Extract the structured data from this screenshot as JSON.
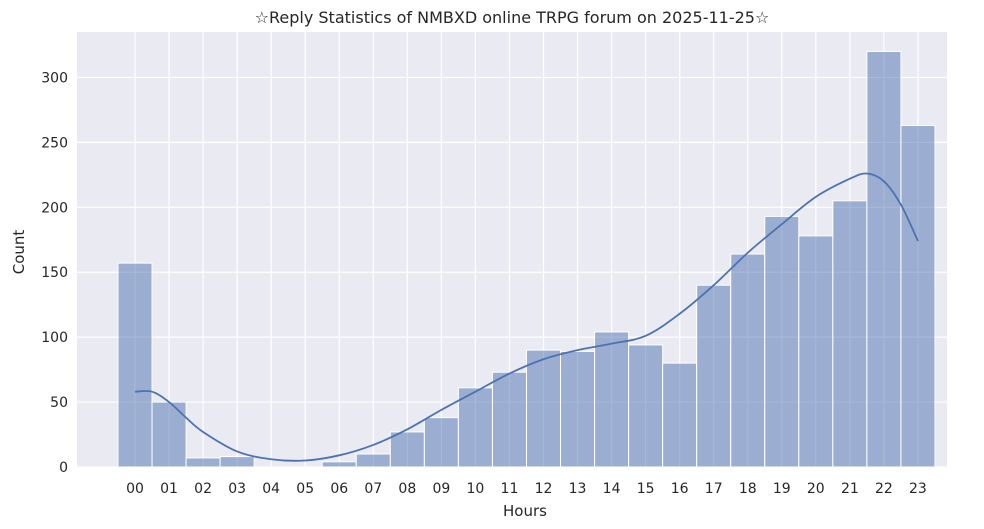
{
  "chart_data": {
    "type": "bar",
    "title": "☆Reply Statistics of NMBXD online TRPG forum on 2025-11-25☆",
    "xlabel": "Hours",
    "ylabel": "Count",
    "categories": [
      "00",
      "01",
      "02",
      "03",
      "04",
      "05",
      "06",
      "07",
      "08",
      "09",
      "10",
      "11",
      "12",
      "13",
      "14",
      "15",
      "16",
      "17",
      "18",
      "19",
      "20",
      "21",
      "22",
      "23"
    ],
    "values": [
      157,
      50,
      7,
      8,
      0,
      0,
      4,
      10,
      27,
      38,
      61,
      73,
      90,
      89,
      104,
      94,
      80,
      140,
      164,
      193,
      178,
      205,
      320,
      263
    ],
    "kde": {
      "x": [
        0,
        0.5,
        1,
        1.5,
        2,
        3,
        4,
        5,
        6,
        7,
        8,
        9,
        10,
        11,
        12,
        13,
        14,
        15,
        16,
        17,
        18,
        19,
        20,
        21,
        21.5,
        22,
        22.5,
        23
      ],
      "y": [
        58,
        58,
        50,
        38,
        27,
        12,
        6,
        5,
        9,
        17,
        29,
        44,
        58,
        72,
        83,
        90,
        95,
        101,
        118,
        140,
        165,
        187,
        208,
        222,
        226,
        220,
        202,
        174
      ]
    },
    "ylim": [
      0,
      335
    ],
    "yticks": [
      0,
      50,
      100,
      150,
      200,
      250,
      300
    ],
    "grid": true,
    "bar_color": "#4c72b0",
    "line_color": "#4c72b0",
    "background_color": "#eaeaf2",
    "grid_color": "#ffffff"
  }
}
